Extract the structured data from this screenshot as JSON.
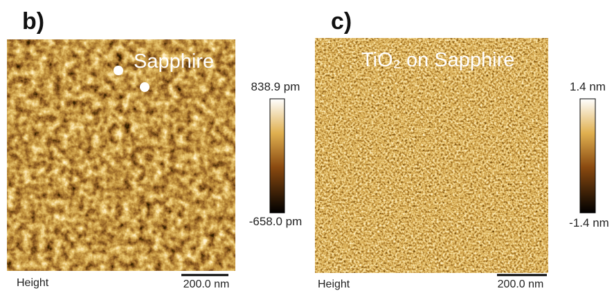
{
  "panels": [
    {
      "label": "b)",
      "title": "Sapphire",
      "colorbar": {
        "max": "838.9 pm",
        "min": "-658.0 pm"
      },
      "channel": "Height",
      "scale_bar": "200.0 nm"
    },
    {
      "label": "c)",
      "title": "TiO₂ on Sapphire",
      "colorbar": {
        "max": "1.4 nm",
        "min": "-1.4 nm"
      },
      "channel": "Height",
      "scale_bar": "200.0 nm"
    }
  ]
}
